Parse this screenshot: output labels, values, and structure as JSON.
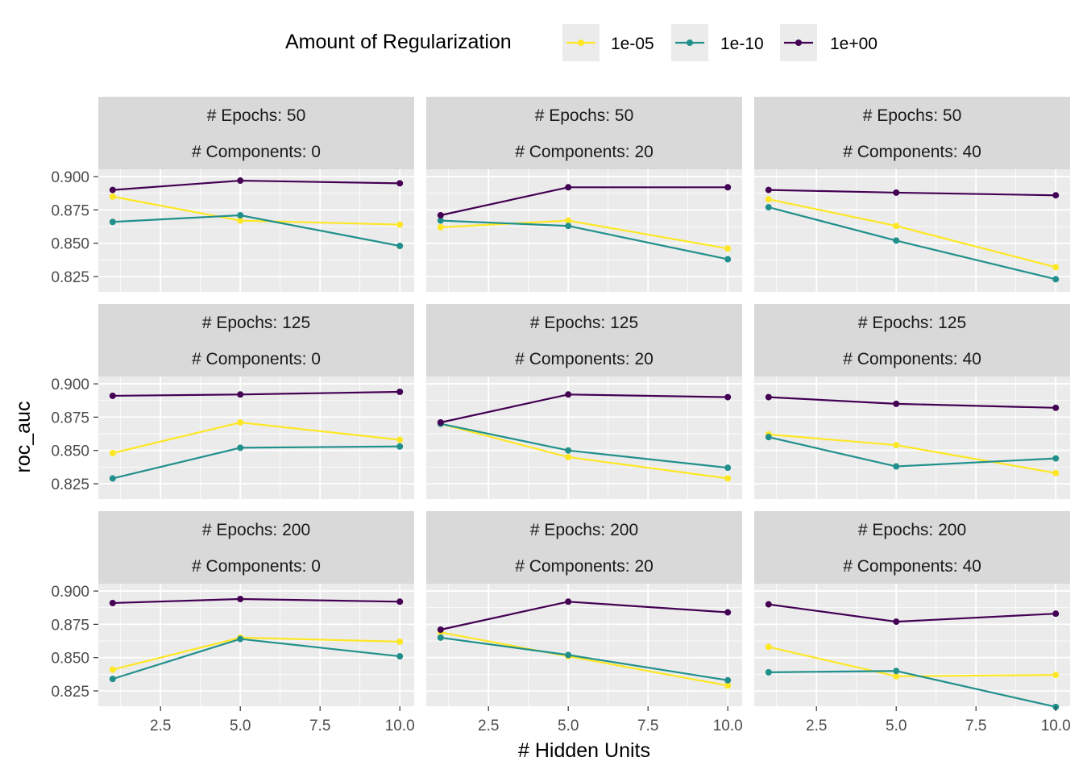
{
  "chart_data": {
    "type": "line",
    "xlabel": "# Hidden Units",
    "ylabel": "roc_auc",
    "x": [
      1,
      5,
      10
    ],
    "xlim": [
      0.55,
      10.45
    ],
    "ylim": [
      0.8135,
      0.9055
    ],
    "x_ticks": [
      2.5,
      5.0,
      7.5,
      10.0
    ],
    "x_tick_labels": [
      "2.5",
      "5.0",
      "7.5",
      "10.0"
    ],
    "y_ticks": [
      0.825,
      0.85,
      0.875,
      0.9
    ],
    "y_tick_labels": [
      "0.825",
      "0.850",
      "0.875",
      "0.900"
    ],
    "grid": true,
    "legend": {
      "title": "Amount of Regularization",
      "position": "top",
      "items": [
        {
          "label": "1e-05",
          "color": "#FDE725"
        },
        {
          "label": "1e-10",
          "color": "#21908C"
        },
        {
          "label": "1e+00",
          "color": "#440154"
        }
      ]
    },
    "panels": [
      {
        "epochs_label": "# Epochs: 50",
        "components_label": "# Components: 0",
        "series": [
          {
            "name": "1e-05",
            "values": [
              0.885,
              0.867,
              0.864
            ]
          },
          {
            "name": "1e-10",
            "values": [
              0.866,
              0.871,
              0.848
            ]
          },
          {
            "name": "1e+00",
            "values": [
              0.89,
              0.897,
              0.895
            ]
          }
        ]
      },
      {
        "epochs_label": "# Epochs: 50",
        "components_label": "# Components: 20",
        "series": [
          {
            "name": "1e-05",
            "values": [
              0.862,
              0.867,
              0.846
            ]
          },
          {
            "name": "1e-10",
            "values": [
              0.867,
              0.863,
              0.838
            ]
          },
          {
            "name": "1e+00",
            "values": [
              0.871,
              0.892,
              0.892
            ]
          }
        ]
      },
      {
        "epochs_label": "# Epochs: 50",
        "components_label": "# Components: 40",
        "series": [
          {
            "name": "1e-05",
            "values": [
              0.883,
              0.863,
              0.832
            ]
          },
          {
            "name": "1e-10",
            "values": [
              0.877,
              0.852,
              0.823
            ]
          },
          {
            "name": "1e+00",
            "values": [
              0.89,
              0.888,
              0.886
            ]
          }
        ]
      },
      {
        "epochs_label": "# Epochs: 125",
        "components_label": "# Components: 0",
        "series": [
          {
            "name": "1e-05",
            "values": [
              0.848,
              0.871,
              0.858
            ]
          },
          {
            "name": "1e-10",
            "values": [
              0.829,
              0.852,
              0.853
            ]
          },
          {
            "name": "1e+00",
            "values": [
              0.891,
              0.892,
              0.894
            ]
          }
        ]
      },
      {
        "epochs_label": "# Epochs: 125",
        "components_label": "# Components: 20",
        "series": [
          {
            "name": "1e-05",
            "values": [
              0.87,
              0.845,
              0.829
            ]
          },
          {
            "name": "1e-10",
            "values": [
              0.87,
              0.85,
              0.837
            ]
          },
          {
            "name": "1e+00",
            "values": [
              0.871,
              0.892,
              0.89
            ]
          }
        ]
      },
      {
        "epochs_label": "# Epochs: 125",
        "components_label": "# Components: 40",
        "series": [
          {
            "name": "1e-05",
            "values": [
              0.862,
              0.854,
              0.833
            ]
          },
          {
            "name": "1e-10",
            "values": [
              0.86,
              0.838,
              0.844
            ]
          },
          {
            "name": "1e+00",
            "values": [
              0.89,
              0.885,
              0.882
            ]
          }
        ]
      },
      {
        "epochs_label": "# Epochs: 200",
        "components_label": "# Components: 0",
        "series": [
          {
            "name": "1e-05",
            "values": [
              0.841,
              0.865,
              0.862
            ]
          },
          {
            "name": "1e-10",
            "values": [
              0.834,
              0.864,
              0.851
            ]
          },
          {
            "name": "1e+00",
            "values": [
              0.891,
              0.894,
              0.892
            ]
          }
        ]
      },
      {
        "epochs_label": "# Epochs: 200",
        "components_label": "# Components: 20",
        "series": [
          {
            "name": "1e-05",
            "values": [
              0.869,
              0.851,
              0.829
            ]
          },
          {
            "name": "1e-10",
            "values": [
              0.865,
              0.852,
              0.833
            ]
          },
          {
            "name": "1e+00",
            "values": [
              0.871,
              0.892,
              0.884
            ]
          }
        ]
      },
      {
        "epochs_label": "# Epochs: 200",
        "components_label": "# Components: 40",
        "series": [
          {
            "name": "1e-05",
            "values": [
              0.858,
              0.836,
              0.837
            ]
          },
          {
            "name": "1e-10",
            "values": [
              0.839,
              0.84,
              0.813
            ]
          },
          {
            "name": "1e+00",
            "values": [
              0.89,
              0.877,
              0.883
            ]
          }
        ]
      }
    ]
  }
}
